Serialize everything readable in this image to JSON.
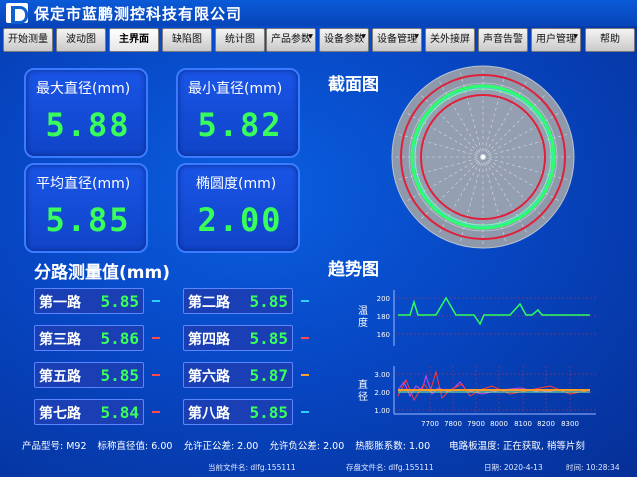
{
  "app": {
    "company": "保定市蓝鹏测控科技有限公司",
    "logo_icon": "company-logo-icon"
  },
  "nav": {
    "items": [
      {
        "label": "开始测量",
        "dropdown": false,
        "active": false
      },
      {
        "label": "波动图",
        "dropdown": false,
        "active": false
      },
      {
        "label": "主界面",
        "dropdown": false,
        "active": true
      },
      {
        "label": "缺陷图",
        "dropdown": false,
        "active": false
      },
      {
        "label": "统计图",
        "dropdown": false,
        "active": false
      },
      {
        "label": "产品参数",
        "dropdown": true,
        "active": false
      },
      {
        "label": "设备参数",
        "dropdown": true,
        "active": false
      },
      {
        "label": "设备管理",
        "dropdown": true,
        "active": false
      },
      {
        "label": "关外接屏",
        "dropdown": false,
        "active": false
      },
      {
        "label": "声音告警",
        "dropdown": false,
        "active": false
      },
      {
        "label": "用户管理",
        "dropdown": true,
        "active": false
      },
      {
        "label": "帮助",
        "dropdown": false,
        "active": false
      }
    ]
  },
  "stats": {
    "max_label": "最大直径(mm)",
    "max_value": "5.88",
    "min_label": "最小直径(mm)",
    "min_value": "5.82",
    "avg_label": "平均直径(mm)",
    "avg_value": "5.85",
    "ellipse_label": "椭圆度(mm)",
    "ellipse_value": "2.00"
  },
  "channels": {
    "title": "分路测量值(mm)",
    "items": [
      {
        "label": "第一路",
        "value": "5.85",
        "tick_color": "#2ad0ff"
      },
      {
        "label": "第二路",
        "value": "5.85",
        "tick_color": "#2ad0ff"
      },
      {
        "label": "第三路",
        "value": "5.86",
        "tick_color": "#ff4a4a"
      },
      {
        "label": "第四路",
        "value": "5.85",
        "tick_color": "#ff4a4a"
      },
      {
        "label": "第五路",
        "value": "5.85",
        "tick_color": "#ff4a4a"
      },
      {
        "label": "第六路",
        "value": "5.87",
        "tick_color": "#ffa030"
      },
      {
        "label": "第七路",
        "value": "5.84",
        "tick_color": "#ff4a4a"
      },
      {
        "label": "第八路",
        "value": "5.85",
        "tick_color": "#2ad0ff"
      }
    ]
  },
  "cross_section": {
    "title": "截面图"
  },
  "trend": {
    "title": "趋势图",
    "temp_label": "温度",
    "diam_label": "直径",
    "temp_ticks": [
      "200",
      "180",
      "160"
    ],
    "diam_ticks": [
      "3.00",
      "2.00",
      "1.00"
    ],
    "x_ticks": [
      "7700",
      "7800",
      "7900",
      "8000",
      "8100",
      "8200",
      "8300"
    ]
  },
  "info": {
    "model": "产品型号: M92",
    "nominal": "标称直径值: 6.00",
    "tol_pos": "允许正公差: 2.00",
    "tol_neg": "允许负公差: 2.00",
    "thermal": "热膨胀系数: 1.00",
    "board_temp": "电路板温度: 正在获取, 稍等片刻"
  },
  "status": {
    "current_file": "当前文件名: dlfg.155111",
    "save_file": "存盘文件名: dlfg.155111",
    "date": "日期: 2020-4-13",
    "time": "时间: 10:28:34"
  },
  "colors": {
    "temp_line": "#2cff5c",
    "diam_line_1": "#ff9a2a",
    "diam_line_2": "#d04ae0",
    "diam_line_3": "#ff3a3a",
    "ring_green": "#2cff6a",
    "ring_red": "#e0203a"
  }
}
